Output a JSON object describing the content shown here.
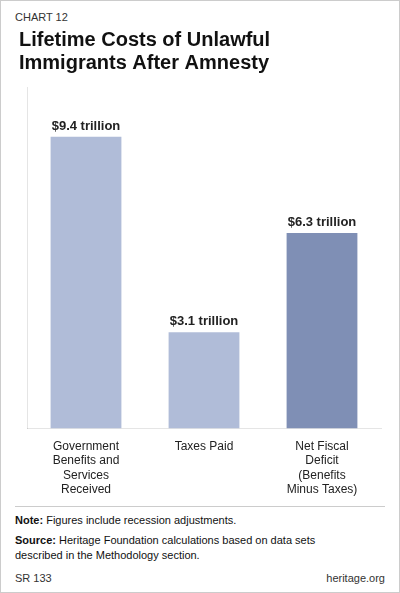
{
  "chart_data": {
    "type": "bar",
    "title": "Lifetime Costs of Unlawful\nImmigrants After Amnesty",
    "categories": [
      "Government\nBenefits and\nServices\nReceived",
      "Taxes Paid",
      "Net Fiscal\nDeficit\n(Benefits\nMinus Taxes)"
    ],
    "values": [
      9.4,
      3.1,
      6.3
    ],
    "value_labels": [
      "$9.4 trillion",
      "$3.1 trillion",
      "$6.3 trillion"
    ],
    "data_labels": true,
    "colors": [
      "#b0bcd8",
      "#b0bcd8",
      "#7f8fb5"
    ],
    "ylim": [
      0,
      11
    ],
    "grid": false,
    "legend": false,
    "tick_labels": "x",
    "annotations": [
      "CHART 12",
      "Note: Figures include recession adjustments.",
      "Source: Heritage Foundation calculations based on data sets\ndescribed in the Methodology section.",
      "SR 133",
      "heritage.org"
    ]
  }
}
